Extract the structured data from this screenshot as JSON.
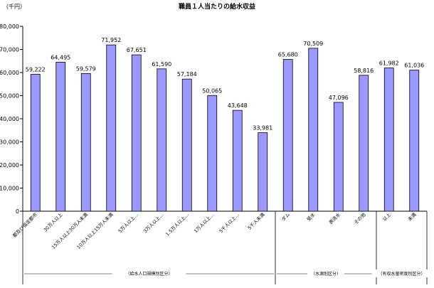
{
  "chart_data": {
    "type": "bar",
    "title": "職員１人当たりの給水収益",
    "unit_label": "（千円）",
    "ylim": [
      0,
      80000
    ],
    "yticks": [
      0,
      10000,
      20000,
      30000,
      40000,
      50000,
      60000,
      70000,
      80000
    ],
    "ytick_labels": [
      "0",
      "10,000",
      "20,000",
      "30,000",
      "40,000",
      "50,000",
      "60,000",
      "70,000",
      "80,000"
    ],
    "grid": false,
    "bar_color": "#9999ff",
    "bar_edge_color": "#000000",
    "categories": [
      "都及び指定都市",
      "30万人以上",
      "15万人以上30万人未満",
      "10万人以上15万人未満",
      "5万人以上…",
      "3万人以上…",
      "1.5万人以上…",
      "1万人以上…",
      "5千人以上…",
      "5千人未満",
      "ダム",
      "受水",
      "表流水",
      "その他",
      "以上",
      "未満"
    ],
    "values": [
      59222,
      64495,
      59579,
      71952,
      67651,
      61590,
      57184,
      50065,
      43648,
      33981,
      65680,
      70509,
      47096,
      58816,
      61982,
      61036
    ],
    "value_labels": [
      "59,222",
      "64,495",
      "59,579",
      "71,952",
      "67,651",
      "61,590",
      "57,184",
      "50,065",
      "43,648",
      "33,981",
      "65,680",
      "70,509",
      "47,096",
      "58,816",
      "61,982",
      "61,036"
    ],
    "groups": [
      {
        "label": "（給水人口規模別区分）",
        "start": 0,
        "end": 9
      },
      {
        "label": "（水源別区分）",
        "start": 10,
        "end": 13
      },
      {
        "label": "（有収水量密度別区分）",
        "start": 14,
        "end": 15
      }
    ]
  }
}
